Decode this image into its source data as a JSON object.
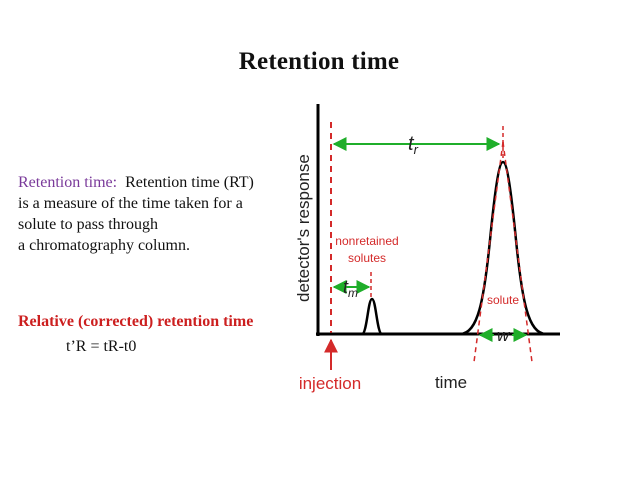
{
  "title": "Retention time",
  "definition": {
    "term": "Retention time:",
    "lines": [
      "Retention time (RT)",
      "is a measure of the time taken for a",
      "solute to pass through",
      "a chromatography column."
    ]
  },
  "relative": {
    "heading": "Relative (corrected) retention time",
    "formula": "t’R = tR-t0"
  },
  "diagram": {
    "y_axis_label": "detector's response",
    "x_axis_label": "time",
    "injection_label": "injection",
    "nonretained_label_1": "nonretained",
    "nonretained_label_2": "solutes",
    "solute_label": "solute",
    "tr_label": "t",
    "tr_sub": "r",
    "tm_label": "t",
    "tm_sub": "m",
    "w_label": "w",
    "colors": {
      "axis": "#000000",
      "annotation_red": "#d42a2a",
      "arrow_green": "#1fae2a",
      "trace": "#000000"
    }
  }
}
